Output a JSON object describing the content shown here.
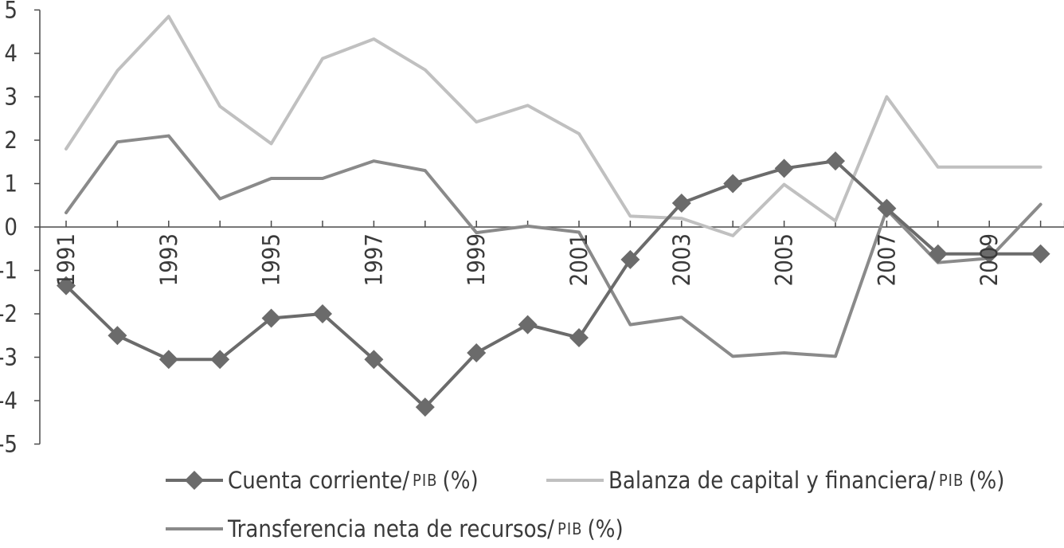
{
  "chart_data": {
    "type": "line",
    "x": [
      1991,
      1992,
      1993,
      1994,
      1995,
      1996,
      1997,
      1998,
      1999,
      2000,
      2001,
      2002,
      2003,
      2004,
      2005,
      2006,
      2007,
      2008,
      2009,
      2010
    ],
    "x_tick_labels": [
      "1991",
      "1993",
      "1995",
      "1997",
      "1999",
      "2001",
      "2003",
      "2005",
      "2007",
      "2009"
    ],
    "y_tick_labels": [
      "5",
      "4",
      "3",
      "2",
      "1",
      "0",
      "-1",
      "-2",
      "-3",
      "-4",
      "-5"
    ],
    "ylim": [
      -5,
      5
    ],
    "grid": false,
    "legend_position": "bottom",
    "series": [
      {
        "name": "Cuenta corriente/",
        "name_suffix": "PIB",
        "name_unit": "(%)",
        "color": "#6b6b6b",
        "marker": "diamond",
        "values": [
          -1.35,
          -2.5,
          -3.05,
          -3.05,
          -2.1,
          -2.0,
          -3.05,
          -4.15,
          -2.9,
          -2.25,
          -2.55,
          -0.75,
          0.55,
          1.0,
          1.35,
          1.52,
          0.43,
          -0.62,
          -0.62,
          -0.62
        ]
      },
      {
        "name": "Balanza de capital y financiera/",
        "name_suffix": "PIB",
        "name_unit": "(%)",
        "color": "#c0c0c0",
        "marker": "none",
        "values": [
          1.8,
          3.6,
          4.85,
          2.78,
          1.92,
          3.88,
          4.33,
          3.62,
          2.42,
          2.8,
          2.15,
          0.25,
          0.2,
          -0.2,
          0.98,
          0.14,
          3.0,
          1.38,
          1.38,
          1.38
        ]
      },
      {
        "name": "Transferencia neta de recursos/",
        "name_suffix": "PIB",
        "name_unit": "(%)",
        "color": "#8a8a8a",
        "marker": "none",
        "values": [
          0.33,
          1.96,
          2.1,
          0.65,
          1.12,
          1.12,
          1.52,
          1.3,
          -0.13,
          0.02,
          -0.12,
          -2.25,
          -2.08,
          -2.98,
          -2.9,
          -2.98,
          0.4,
          -0.82,
          -0.72,
          0.52
        ]
      }
    ]
  }
}
